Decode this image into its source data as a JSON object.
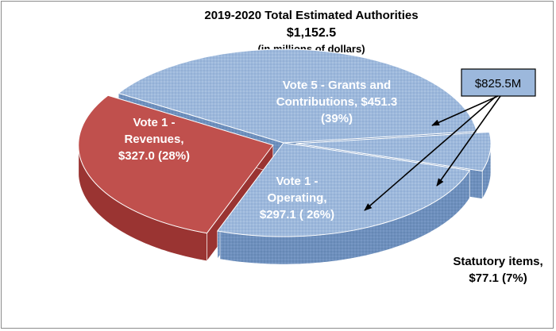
{
  "chart_data": {
    "type": "pie",
    "title": "2019-2020 Total Estimated Authorities",
    "total": "$1,152.5",
    "units": "(in millions of dollars)",
    "slices": [
      {
        "label_lines": [
          "Vote 5 - Grants and",
          "Contributions,  $451.3",
          "(39%)"
        ],
        "value": 451.3,
        "percent": 39,
        "color": "#9cb8dc",
        "text_color": "#ffffff"
      },
      {
        "label_lines": [
          "Statutory items,",
          "$77.1  (7%)"
        ],
        "value": 77.1,
        "percent": 7,
        "color": "#9cb8dc",
        "text_color": "#000000"
      },
      {
        "label_lines": [
          "Vote 1 -",
          "Operating,",
          "$297.1  ( 26%)"
        ],
        "value": 297.1,
        "percent": 26,
        "color": "#9cb8dc",
        "text_color": "#ffffff"
      },
      {
        "label_lines": [
          "Vote 1 -",
          "Revenues,",
          "$327.0  (28%)"
        ],
        "value": 327.0,
        "percent": 28,
        "color": "#c0504d",
        "text_color": "#ffffff"
      }
    ],
    "callout": {
      "text": "$825.5M",
      "fill": "#9cb8dc"
    }
  }
}
